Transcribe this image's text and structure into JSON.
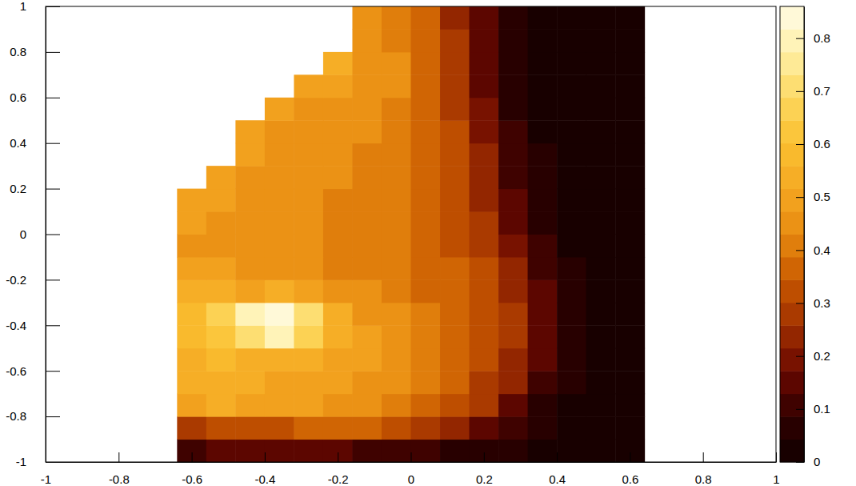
{
  "chart_data": {
    "type": "heatmap",
    "xlim": [
      -1,
      1
    ],
    "ylim": [
      -1,
      1
    ],
    "xticks": [
      -1,
      -0.8,
      -0.6,
      -0.4,
      -0.2,
      0,
      0.2,
      0.4,
      0.6,
      0.8,
      1
    ],
    "yticks": [
      -1,
      -0.8,
      -0.6,
      -0.4,
      -0.2,
      0,
      0.2,
      0.4,
      0.6,
      0.8,
      1
    ],
    "zlim": [
      0,
      0.86
    ],
    "zticks": [
      0,
      0.1,
      0.2,
      0.3,
      0.4,
      0.5,
      0.6,
      0.7,
      0.8
    ],
    "x_bins": [
      -0.64,
      -0.56,
      -0.48,
      -0.4,
      -0.32,
      -0.24,
      -0.16,
      -0.08,
      0,
      0.08,
      0.16,
      0.24,
      0.32,
      0.4,
      0.48,
      0.56,
      0.64
    ],
    "y_bins": [
      -1,
      -0.9,
      -0.8,
      -0.7,
      -0.6,
      -0.5,
      -0.4,
      -0.3,
      -0.2,
      -0.1,
      0,
      0.1,
      0.2,
      0.3,
      0.4,
      0.5,
      0.6,
      0.7,
      0.8,
      0.9,
      1
    ],
    "z": [
      [
        0.12,
        0.13,
        0.13,
        0.13,
        0.13,
        0.13,
        0.12,
        0.12,
        0.1,
        0.08,
        0.06,
        0.05,
        0.04,
        0.04,
        0.04,
        0.04
      ],
      [
        0.3,
        0.32,
        0.33,
        0.34,
        0.35,
        0.36,
        0.36,
        0.34,
        0.3,
        0.25,
        0.17,
        0.09,
        0.05,
        0.04,
        0.04,
        0.04
      ],
      [
        0.5,
        0.52,
        0.5,
        0.49,
        0.48,
        0.47,
        0.45,
        0.42,
        0.38,
        0.33,
        0.26,
        0.17,
        0.08,
        0.04,
        0.04,
        0.04
      ],
      [
        0.52,
        0.53,
        0.52,
        0.5,
        0.49,
        0.48,
        0.46,
        0.43,
        0.4,
        0.36,
        0.3,
        0.22,
        0.12,
        0.05,
        0.04,
        0.04
      ],
      [
        0.55,
        0.56,
        0.55,
        0.53,
        0.52,
        0.5,
        0.48,
        0.45,
        0.41,
        0.37,
        0.32,
        0.25,
        0.14,
        0.05,
        0.04,
        0.04
      ],
      [
        0.58,
        0.62,
        0.72,
        0.78,
        0.66,
        0.54,
        0.48,
        0.45,
        0.41,
        0.37,
        0.33,
        0.26,
        0.15,
        0.06,
        0.04,
        0.04
      ],
      [
        0.6,
        0.66,
        0.78,
        0.84,
        0.72,
        0.55,
        0.47,
        0.44,
        0.4,
        0.37,
        0.33,
        0.26,
        0.15,
        0.06,
        0.04,
        0.04
      ],
      [
        0.55,
        0.52,
        0.5,
        0.52,
        0.5,
        0.46,
        0.43,
        0.4,
        0.38,
        0.36,
        0.32,
        0.25,
        0.14,
        0.05,
        0.04,
        0.04
      ],
      [
        0.5,
        0.48,
        0.46,
        0.45,
        0.44,
        0.42,
        0.41,
        0.39,
        0.37,
        0.35,
        0.31,
        0.23,
        0.12,
        0.05,
        0.04,
        0.04
      ],
      [
        0.47,
        0.46,
        0.45,
        0.44,
        0.43,
        0.42,
        0.41,
        0.39,
        0.37,
        0.34,
        0.29,
        0.2,
        0.09,
        0.04,
        0.04,
        0.04
      ],
      [
        0.48,
        0.47,
        0.45,
        0.44,
        0.43,
        0.42,
        0.41,
        0.39,
        0.37,
        0.33,
        0.27,
        0.17,
        0.07,
        0.04,
        0.04,
        0.04
      ],
      [
        0.5,
        0.49,
        0.46,
        0.45,
        0.44,
        0.42,
        0.41,
        0.39,
        0.37,
        0.32,
        0.25,
        0.14,
        0.06,
        0.04,
        0.04,
        0.04
      ],
      [
        null,
        0.5,
        0.47,
        0.45,
        0.44,
        0.43,
        0.41,
        0.39,
        0.36,
        0.31,
        0.23,
        0.12,
        0.05,
        0.04,
        0.04,
        0.04
      ],
      [
        null,
        null,
        0.48,
        0.46,
        0.44,
        0.43,
        0.42,
        0.41,
        0.38,
        0.32,
        0.22,
        0.1,
        0.05,
        0.04,
        0.04,
        0.04
      ],
      [
        null,
        null,
        0.5,
        0.47,
        0.45,
        0.44,
        0.43,
        0.41,
        0.38,
        0.31,
        0.2,
        0.09,
        0.04,
        0.04,
        0.04,
        0.04
      ],
      [
        null,
        null,
        null,
        0.5,
        0.47,
        0.46,
        0.44,
        0.42,
        0.38,
        0.3,
        0.18,
        0.08,
        0.04,
        0.04,
        0.04,
        0.04
      ],
      [
        null,
        null,
        null,
        null,
        0.5,
        0.5,
        0.45,
        0.43,
        0.38,
        0.28,
        0.16,
        0.07,
        0.04,
        0.04,
        0.04,
        0.04
      ],
      [
        null,
        null,
        null,
        null,
        null,
        0.55,
        0.45,
        0.43,
        0.37,
        0.27,
        0.15,
        0.06,
        0.04,
        0.04,
        0.04,
        0.04
      ],
      [
        null,
        null,
        null,
        null,
        null,
        null,
        0.45,
        0.42,
        0.36,
        0.26,
        0.15,
        0.06,
        0.04,
        0.04,
        0.04,
        0.04
      ],
      [
        null,
        null,
        null,
        null,
        null,
        null,
        0.45,
        0.42,
        0.35,
        0.25,
        0.15,
        0.06,
        0.04,
        0.04,
        0.04,
        0.04
      ]
    ]
  }
}
